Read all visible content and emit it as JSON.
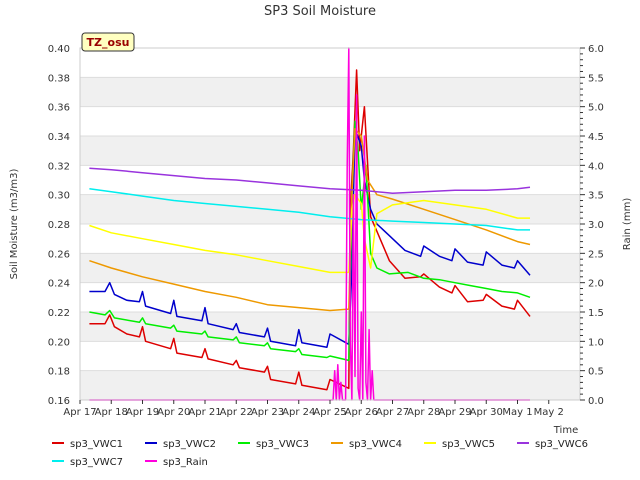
{
  "chart_data": {
    "type": "line",
    "title": "SP3 Soil Moisture",
    "badge": "TZ_osu",
    "xlabel": "Time",
    "ylabel": "Soil Moisture (m3/m3)",
    "y2label": "Rain (mm)",
    "x_ticks": [
      "Apr 17",
      "Apr 18",
      "Apr 19",
      "Apr 20",
      "Apr 21",
      "Apr 22",
      "Apr 23",
      "Apr 24",
      "Apr 25",
      "Apr 26",
      "Apr 27",
      "Apr 28",
      "Apr 29",
      "Apr 30",
      "May 1",
      "May 2"
    ],
    "y_ticks": [
      "0.16",
      "0.18",
      "0.20",
      "0.22",
      "0.24",
      "0.26",
      "0.28",
      "0.30",
      "0.32",
      "0.34",
      "0.36",
      "0.38",
      "0.40"
    ],
    "y2_ticks": [
      "0.0",
      "0.5",
      "1.0",
      "1.5",
      "2.0",
      "2.5",
      "3.0",
      "3.5",
      "4.0",
      "4.5",
      "5.0",
      "5.5",
      "6.0"
    ],
    "xlim": [
      0,
      16
    ],
    "ylim": [
      0.16,
      0.4
    ],
    "y2lim": [
      0,
      6
    ],
    "x_unit_note": "days after Apr 17",
    "grid": true,
    "legend_position": "bottom",
    "series": [
      {
        "name": "sp3_VWC1",
        "color": "#dd0000",
        "axis": "left",
        "x": [
          0.3,
          0.8,
          0.95,
          1.1,
          1.5,
          1.9,
          2.0,
          2.1,
          2.9,
          3.0,
          3.1,
          3.9,
          4.0,
          4.1,
          4.9,
          5.0,
          5.1,
          5.9,
          6.0,
          6.1,
          6.9,
          7.0,
          7.1,
          7.9,
          8.0,
          8.6,
          8.65,
          8.75,
          8.85,
          8.95,
          9.1,
          9.3,
          9.5,
          9.9,
          10.4,
          10.9,
          11.0,
          11.5,
          11.9,
          12.0,
          12.4,
          12.9,
          13.0,
          13.5,
          13.9,
          14.0,
          14.4
        ],
        "y": [
          0.212,
          0.212,
          0.218,
          0.21,
          0.205,
          0.203,
          0.21,
          0.2,
          0.195,
          0.202,
          0.192,
          0.189,
          0.195,
          0.188,
          0.184,
          0.187,
          0.182,
          0.179,
          0.183,
          0.174,
          0.171,
          0.179,
          0.17,
          0.167,
          0.174,
          0.168,
          0.29,
          0.33,
          0.385,
          0.33,
          0.36,
          0.285,
          0.275,
          0.255,
          0.243,
          0.244,
          0.246,
          0.237,
          0.233,
          0.238,
          0.227,
          0.228,
          0.232,
          0.224,
          0.222,
          0.228,
          0.217
        ]
      },
      {
        "name": "sp3_VWC2",
        "color": "#0000cc",
        "axis": "left",
        "x": [
          0.3,
          0.8,
          0.95,
          1.1,
          1.5,
          1.9,
          2.0,
          2.1,
          2.9,
          3.0,
          3.1,
          3.9,
          4.0,
          4.1,
          4.9,
          5.0,
          5.1,
          5.9,
          6.0,
          6.1,
          6.9,
          7.0,
          7.1,
          7.9,
          8.0,
          8.6,
          8.7,
          8.8,
          9.0,
          9.1,
          9.3,
          9.5,
          9.9,
          10.4,
          10.9,
          11.0,
          11.5,
          11.9,
          12.0,
          12.4,
          12.9,
          13.0,
          13.5,
          13.9,
          14.0,
          14.4
        ],
        "y": [
          0.234,
          0.234,
          0.24,
          0.232,
          0.228,
          0.227,
          0.234,
          0.224,
          0.219,
          0.228,
          0.217,
          0.214,
          0.223,
          0.212,
          0.208,
          0.212,
          0.206,
          0.203,
          0.209,
          0.2,
          0.197,
          0.208,
          0.199,
          0.196,
          0.205,
          0.198,
          0.25,
          0.345,
          0.333,
          0.31,
          0.29,
          0.28,
          0.272,
          0.262,
          0.258,
          0.265,
          0.258,
          0.255,
          0.263,
          0.254,
          0.252,
          0.261,
          0.252,
          0.25,
          0.255,
          0.245
        ]
      },
      {
        "name": "sp3_VWC3",
        "color": "#00ee00",
        "axis": "left",
        "x": [
          0.3,
          0.8,
          0.95,
          1.1,
          1.9,
          2.0,
          2.1,
          2.9,
          3.0,
          3.1,
          3.9,
          4.0,
          4.1,
          4.9,
          5.0,
          5.1,
          5.9,
          6.0,
          6.1,
          6.9,
          7.0,
          7.1,
          7.9,
          8.0,
          8.6,
          8.7,
          8.8,
          8.9,
          9.0,
          9.15,
          9.3,
          9.5,
          9.9,
          10.5,
          11.0,
          11.5,
          12.0,
          12.5,
          13.0,
          13.5,
          14.0,
          14.4
        ],
        "y": [
          0.22,
          0.218,
          0.221,
          0.216,
          0.213,
          0.216,
          0.212,
          0.209,
          0.211,
          0.207,
          0.205,
          0.207,
          0.203,
          0.201,
          0.203,
          0.199,
          0.197,
          0.199,
          0.195,
          0.193,
          0.195,
          0.191,
          0.189,
          0.19,
          0.187,
          0.3,
          0.35,
          0.33,
          0.29,
          0.32,
          0.26,
          0.25,
          0.246,
          0.247,
          0.243,
          0.242,
          0.24,
          0.238,
          0.236,
          0.234,
          0.233,
          0.23
        ]
      },
      {
        "name": "sp3_VWC4",
        "color": "#ee9900",
        "axis": "left",
        "x": [
          0.3,
          1.0,
          2.0,
          3.0,
          4.0,
          5.0,
          6.0,
          7.0,
          8.0,
          8.6,
          8.7,
          8.8,
          9.0,
          9.2,
          9.5,
          10.0,
          11.0,
          12.0,
          13.0,
          14.0,
          14.4
        ],
        "y": [
          0.255,
          0.25,
          0.244,
          0.239,
          0.234,
          0.23,
          0.225,
          0.223,
          0.221,
          0.222,
          0.3,
          0.345,
          0.34,
          0.31,
          0.3,
          0.297,
          0.29,
          0.283,
          0.276,
          0.268,
          0.266
        ]
      },
      {
        "name": "sp3_VWC5",
        "color": "#ffff00",
        "axis": "left",
        "x": [
          0.3,
          1.0,
          2.0,
          3.0,
          4.0,
          5.0,
          6.0,
          7.0,
          8.0,
          8.6,
          8.7,
          8.8,
          9.0,
          9.1,
          9.3,
          9.5,
          10.0,
          11.0,
          12.0,
          13.0,
          14.0,
          14.4
        ],
        "y": [
          0.279,
          0.274,
          0.27,
          0.266,
          0.262,
          0.259,
          0.255,
          0.251,
          0.247,
          0.247,
          0.29,
          0.3,
          0.294,
          0.27,
          0.25,
          0.287,
          0.293,
          0.296,
          0.293,
          0.29,
          0.284,
          0.284
        ]
      },
      {
        "name": "sp3_VWC6",
        "color": "#9933dd",
        "axis": "left",
        "x": [
          0.3,
          1.0,
          2.0,
          3.0,
          4.0,
          5.0,
          6.0,
          7.0,
          8.0,
          9.0,
          10.0,
          11.0,
          12.0,
          13.0,
          14.0,
          14.4
        ],
        "y": [
          0.318,
          0.317,
          0.315,
          0.313,
          0.311,
          0.31,
          0.308,
          0.306,
          0.304,
          0.303,
          0.301,
          0.302,
          0.303,
          0.303,
          0.304,
          0.305
        ]
      },
      {
        "name": "sp3_VWC7",
        "color": "#00eeee",
        "axis": "left",
        "x": [
          0.3,
          1.0,
          2.0,
          3.0,
          4.0,
          5.0,
          6.0,
          7.0,
          8.0,
          9.0,
          10.0,
          11.0,
          12.0,
          13.0,
          14.0,
          14.4
        ],
        "y": [
          0.304,
          0.302,
          0.299,
          0.296,
          0.294,
          0.292,
          0.29,
          0.288,
          0.285,
          0.283,
          0.282,
          0.281,
          0.28,
          0.279,
          0.276,
          0.276
        ]
      },
      {
        "name": "sp3_Rain",
        "color": "#ff00dd",
        "axis": "right",
        "x": [
          0.3,
          8.1,
          8.15,
          8.2,
          8.25,
          8.3,
          8.35,
          8.4,
          8.5,
          8.55,
          8.6,
          8.65,
          8.7,
          8.75,
          8.8,
          8.85,
          8.9,
          8.95,
          9.0,
          9.05,
          9.1,
          9.15,
          9.2,
          9.25,
          9.3,
          9.35,
          9.4,
          9.5,
          14.4
        ],
        "y": [
          0,
          0,
          0.5,
          0,
          0.6,
          0,
          0.3,
          0,
          0,
          4.0,
          6.0,
          1.0,
          0,
          3.5,
          0.4,
          5.2,
          0.2,
          0,
          1.5,
          0,
          4.5,
          0.3,
          0,
          1.2,
          0,
          0.5,
          0,
          0,
          0
        ]
      }
    ]
  }
}
